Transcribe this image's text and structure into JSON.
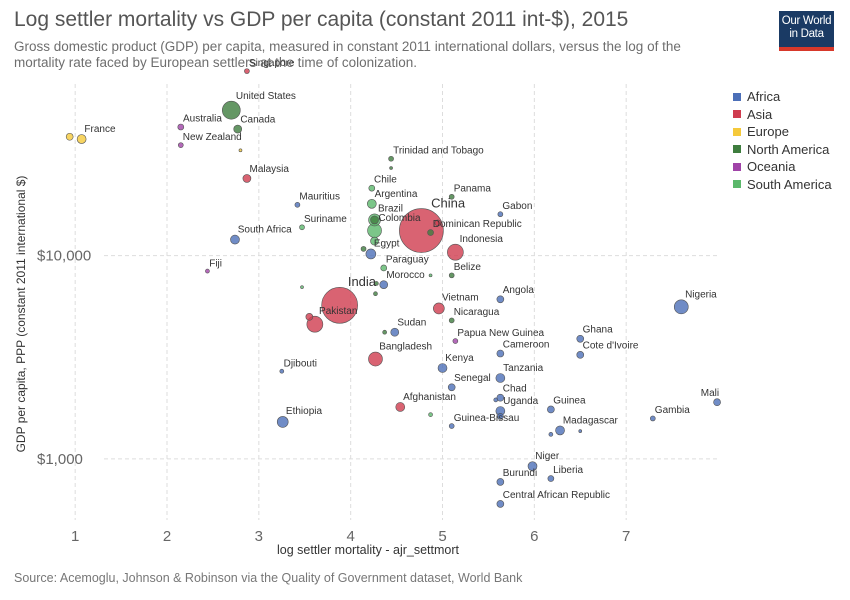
{
  "header": {
    "title": "Log settler mortality vs GDP per capita (constant 2011 int-$), 2015",
    "subtitle": "Gross domestic product (GDP) per capita, measured in constant 2011 international dollars, versus the log of the mortality rate faced by European settlers at the time of colonization.",
    "logo_line1": "Our World",
    "logo_line2": "in Data"
  },
  "footer": {
    "source": "Source: Acemoglu, Johnson & Robinson via the Quality of Government dataset, World Bank"
  },
  "colors": {
    "Africa": "#4c6fb8",
    "Asia": "#cf3c4f",
    "Europe": "#f5c93b",
    "North America": "#3e7d3e",
    "Oceania": "#a043a8",
    "South America": "#5bb86b"
  },
  "chart_data": {
    "type": "scatter",
    "xlabel": "log settler mortality - ajr_settmort",
    "ylabel": "GDP per capita, PPP (constant 2011 international $)",
    "x_scale": "linear",
    "y_scale": "log",
    "xlim": [
      0.9,
      8.0
    ],
    "ylim": [
      500,
      70000
    ],
    "x_ticks": [
      1,
      2,
      3,
      4,
      5,
      6,
      7
    ],
    "x_tick_labels": [
      "1",
      "2",
      "3",
      "4",
      "5",
      "6",
      "7"
    ],
    "y_ticks": [
      1000,
      10000
    ],
    "y_tick_labels": [
      "$1,000",
      "$10,000"
    ],
    "grid": true,
    "legend_position": "right",
    "legend": [
      "Africa",
      "Asia",
      "Europe",
      "North America",
      "Oceania",
      "South America"
    ],
    "points": [
      {
        "label": "Singapore",
        "x": 2.87,
        "y": 81000,
        "continent": "Asia",
        "size": 2.5
      },
      {
        "label": "United States",
        "x": 2.7,
        "y": 52000,
        "continent": "North America",
        "size": 9
      },
      {
        "label": "Canada",
        "x": 2.77,
        "y": 42000,
        "continent": "North America",
        "size": 4
      },
      {
        "label": "Australia",
        "x": 2.15,
        "y": 43000,
        "continent": "Oceania",
        "size": 3
      },
      {
        "label": "France",
        "x": 1.07,
        "y": 37500,
        "continent": "Europe",
        "size": 4.5
      },
      {
        "label": "",
        "x": 0.94,
        "y": 38500,
        "continent": "Europe",
        "size": 3.5
      },
      {
        "label": "New Zealand",
        "x": 2.15,
        "y": 35000,
        "continent": "Oceania",
        "size": 2.5
      },
      {
        "label": "",
        "x": 2.8,
        "y": 33000,
        "continent": "Europe",
        "size": 1.5
      },
      {
        "label": "Trinidad and Tobago",
        "x": 4.44,
        "y": 30000,
        "continent": "North America",
        "size": 2.5
      },
      {
        "label": "",
        "x": 4.44,
        "y": 27000,
        "continent": "North America",
        "size": 1.5
      },
      {
        "label": "Malaysia",
        "x": 2.87,
        "y": 24000,
        "continent": "Asia",
        "size": 4
      },
      {
        "label": "Chile",
        "x": 4.23,
        "y": 21500,
        "continent": "South America",
        "size": 3
      },
      {
        "label": "Panama",
        "x": 5.1,
        "y": 19500,
        "continent": "North America",
        "size": 2.5
      },
      {
        "label": "Mauritius",
        "x": 3.42,
        "y": 17800,
        "continent": "Africa",
        "size": 2.5
      },
      {
        "label": "Argentina",
        "x": 4.23,
        "y": 18000,
        "continent": "South America",
        "size": 4.5
      },
      {
        "label": "Gabon",
        "x": 5.63,
        "y": 16000,
        "continent": "Africa",
        "size": 2.5
      },
      {
        "label": "Brazil",
        "x": 4.26,
        "y": 15000,
        "continent": "South America",
        "size": 6
      },
      {
        "label": "",
        "x": 4.26,
        "y": 15000,
        "continent": "North America",
        "size": 4
      },
      {
        "label": "Suriname",
        "x": 3.47,
        "y": 13800,
        "continent": "South America",
        "size": 2.5
      },
      {
        "label": "China",
        "x": 4.77,
        "y": 13300,
        "continent": "Asia",
        "size": 22
      },
      {
        "label": "Colombia",
        "x": 4.26,
        "y": 13300,
        "continent": "South America",
        "size": 7
      },
      {
        "label": "Dominican Republic",
        "x": 4.87,
        "y": 13000,
        "continent": "North America",
        "size": 3
      },
      {
        "label": "",
        "x": 4.95,
        "y": 14500,
        "continent": "Asia",
        "size": 3
      },
      {
        "label": "South Africa",
        "x": 2.74,
        "y": 12000,
        "continent": "Africa",
        "size": 4.5
      },
      {
        "label": "",
        "x": 4.26,
        "y": 11800,
        "continent": "South America",
        "size": 4
      },
      {
        "label": "Egypt",
        "x": 4.22,
        "y": 10200,
        "continent": "Africa",
        "size": 5
      },
      {
        "label": "",
        "x": 4.14,
        "y": 10800,
        "continent": "North America",
        "size": 2.5
      },
      {
        "label": "Indonesia",
        "x": 5.14,
        "y": 10400,
        "continent": "Asia",
        "size": 8
      },
      {
        "label": "Fiji",
        "x": 2.44,
        "y": 8400,
        "continent": "Oceania",
        "size": 2
      },
      {
        "label": "Paraguay",
        "x": 4.36,
        "y": 8700,
        "continent": "South America",
        "size": 3
      },
      {
        "label": "Belize",
        "x": 5.1,
        "y": 8000,
        "continent": "North America",
        "size": 2.5
      },
      {
        "label": "",
        "x": 4.87,
        "y": 8000,
        "continent": "South America",
        "size": 1.5
      },
      {
        "label": "Morocco",
        "x": 4.36,
        "y": 7200,
        "continent": "Africa",
        "size": 4
      },
      {
        "label": "",
        "x": 4.28,
        "y": 7300,
        "continent": "North America",
        "size": 2
      },
      {
        "label": "",
        "x": 3.47,
        "y": 7000,
        "continent": "South America",
        "size": 1.5
      },
      {
        "label": "",
        "x": 4.27,
        "y": 6500,
        "continent": "North America",
        "size": 2
      },
      {
        "label": "Angola",
        "x": 5.63,
        "y": 6100,
        "continent": "Africa",
        "size": 3.5
      },
      {
        "label": "India",
        "x": 3.88,
        "y": 5700,
        "continent": "Asia",
        "size": 18
      },
      {
        "label": "Nigeria",
        "x": 7.6,
        "y": 5600,
        "continent": "Africa",
        "size": 7
      },
      {
        "label": "Vietnam",
        "x": 4.96,
        "y": 5500,
        "continent": "Asia",
        "size": 5.5
      },
      {
        "label": "",
        "x": 3.55,
        "y": 5000,
        "continent": "Asia",
        "size": 3.5
      },
      {
        "label": "Pakistan",
        "x": 3.61,
        "y": 4600,
        "continent": "Asia",
        "size": 8
      },
      {
        "label": "Nicaragua",
        "x": 5.1,
        "y": 4800,
        "continent": "North America",
        "size": 2.5
      },
      {
        "label": "Sudan",
        "x": 4.48,
        "y": 4200,
        "continent": "Africa",
        "size": 4
      },
      {
        "label": "",
        "x": 4.37,
        "y": 4200,
        "continent": "North America",
        "size": 2
      },
      {
        "label": "Ghana",
        "x": 6.5,
        "y": 3900,
        "continent": "Africa",
        "size": 3.5
      },
      {
        "label": "Papua New Guinea",
        "x": 5.14,
        "y": 3800,
        "continent": "Oceania",
        "size": 2.5
      },
      {
        "label": "Cameroon",
        "x": 5.63,
        "y": 3300,
        "continent": "Africa",
        "size": 3.5
      },
      {
        "label": "Cote d'Ivoire",
        "x": 6.5,
        "y": 3250,
        "continent": "Africa",
        "size": 3.5
      },
      {
        "label": "Bangladesh",
        "x": 4.27,
        "y": 3100,
        "continent": "Asia",
        "size": 7
      },
      {
        "label": "Kenya",
        "x": 5.0,
        "y": 2800,
        "continent": "Africa",
        "size": 4.5
      },
      {
        "label": "Djibouti",
        "x": 3.25,
        "y": 2700,
        "continent": "Africa",
        "size": 2
      },
      {
        "label": "Tanzania",
        "x": 5.63,
        "y": 2500,
        "continent": "Africa",
        "size": 4.5
      },
      {
        "label": "Senegal",
        "x": 5.1,
        "y": 2250,
        "continent": "Africa",
        "size": 3.5
      },
      {
        "label": "Chad",
        "x": 5.63,
        "y": 2000,
        "continent": "Africa",
        "size": 3.5
      },
      {
        "label": "",
        "x": 5.58,
        "y": 1950,
        "continent": "Africa",
        "size": 2
      },
      {
        "label": "Mali",
        "x": 7.99,
        "y": 1900,
        "continent": "Africa",
        "size": 3.5
      },
      {
        "label": "Afghanistan",
        "x": 4.54,
        "y": 1800,
        "continent": "Asia",
        "size": 4.5
      },
      {
        "label": "Guinea",
        "x": 6.18,
        "y": 1750,
        "continent": "Africa",
        "size": 3.5
      },
      {
        "label": "Uganda",
        "x": 5.63,
        "y": 1720,
        "continent": "Africa",
        "size": 4.5
      },
      {
        "label": "",
        "x": 5.63,
        "y": 1620,
        "continent": "Africa",
        "size": 3
      },
      {
        "label": "",
        "x": 4.87,
        "y": 1650,
        "continent": "South America",
        "size": 2
      },
      {
        "label": "Gambia",
        "x": 7.29,
        "y": 1580,
        "continent": "Africa",
        "size": 2.5
      },
      {
        "label": "Ethiopia",
        "x": 3.26,
        "y": 1520,
        "continent": "Africa",
        "size": 5.5
      },
      {
        "label": "Guinea-Bissau",
        "x": 5.1,
        "y": 1450,
        "continent": "Africa",
        "size": 2.5
      },
      {
        "label": "Madagascar",
        "x": 6.28,
        "y": 1380,
        "continent": "Africa",
        "size": 4.5
      },
      {
        "label": "",
        "x": 6.18,
        "y": 1320,
        "continent": "Africa",
        "size": 2
      },
      {
        "label": "",
        "x": 6.5,
        "y": 1370,
        "continent": "Africa",
        "size": 1.5
      },
      {
        "label": "Niger",
        "x": 5.98,
        "y": 920,
        "continent": "Africa",
        "size": 4.5
      },
      {
        "label": "Liberia",
        "x": 6.18,
        "y": 800,
        "continent": "Africa",
        "size": 3
      },
      {
        "label": "Burundi",
        "x": 5.63,
        "y": 770,
        "continent": "Africa",
        "size": 3.5
      },
      {
        "label": "Central African Republic",
        "x": 5.63,
        "y": 600,
        "continent": "Africa",
        "size": 3.5
      }
    ]
  }
}
